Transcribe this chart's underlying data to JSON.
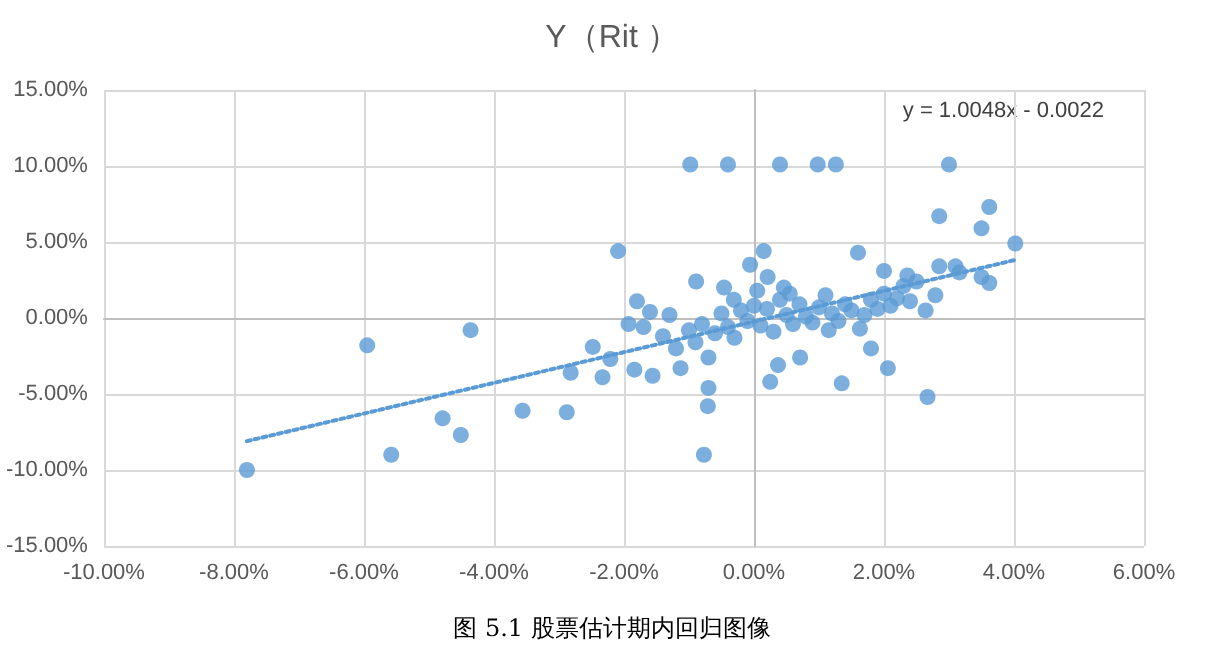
{
  "chart_data": {
    "type": "scatter",
    "title": "Y（Rit ）",
    "annotations": [
      "y = 1.0048x - 0.0022",
      "图 5.1 股票估计期内回归图像"
    ],
    "xlim": [
      -0.1,
      0.06
    ],
    "ylim": [
      -0.15,
      0.15
    ],
    "xticks": [
      {
        "value": -0.1,
        "label": "-10.00%"
      },
      {
        "value": -0.08,
        "label": "-8.00%"
      },
      {
        "value": -0.06,
        "label": "-6.00%"
      },
      {
        "value": -0.04,
        "label": "-4.00%"
      },
      {
        "value": -0.02,
        "label": "-2.00%"
      },
      {
        "value": 0,
        "label": "0.00%"
      },
      {
        "value": 0.02,
        "label": "2.00%"
      },
      {
        "value": 0.04,
        "label": "4.00%"
      },
      {
        "value": 0.06,
        "label": "6.00%"
      }
    ],
    "yticks": [
      {
        "value": -0.15,
        "label": "-15.00%"
      },
      {
        "value": -0.1,
        "label": "-10.00%"
      },
      {
        "value": -0.05,
        "label": "-5.00%"
      },
      {
        "value": 0,
        "label": "0.00%"
      },
      {
        "value": 0.05,
        "label": "5.00%"
      },
      {
        "value": 0.1,
        "label": "10.00%"
      },
      {
        "value": 0.15,
        "label": "15.00%"
      }
    ],
    "grid": true,
    "marker": "circle",
    "series": [
      {
        "color": "#5b9bd5",
        "x": [
          -0.078,
          -0.0558,
          -0.0595,
          -0.0436,
          -0.0479,
          -0.0451,
          -0.0356,
          -0.0288,
          -0.0282,
          -0.0248,
          -0.0233,
          -0.0221,
          -0.0209,
          -0.0193,
          -0.018,
          -0.0184,
          -0.0098,
          -0.004,
          0.004,
          0.0098,
          0.0126,
          0.03,
          0.0285,
          0.0362,
          0.035,
          0.0402,
          0.0015,
          -0.0006,
          0.016,
          0.02,
          0.0236,
          0.0285,
          0.031,
          0.0316,
          0.035,
          0.0362,
          0.0279,
          0.0264,
          0.0267,
          0.0206,
          0.0135,
          0.0071,
          0.0025,
          0.0037,
          -0.0071,
          -0.0077,
          -0.007,
          -0.0089,
          -0.0046,
          -0.0031,
          0.0021,
          0.0046,
          -0.0156,
          -0.0113,
          -0.016,
          0.0163,
          0.018,
          -0.014,
          -0.012,
          -0.01,
          -0.009,
          -0.008,
          -0.006,
          -0.005,
          -0.004,
          -0.003,
          -0.002,
          -0.001,
          0.0,
          0.001,
          0.002,
          0.003,
          0.004,
          0.005,
          0.006,
          0.007,
          0.008,
          0.009,
          0.01,
          0.011,
          0.012,
          0.013,
          0.014,
          0.015,
          0.017,
          0.018,
          0.019,
          0.02,
          0.021,
          0.022,
          0.023,
          0.024,
          0.025,
          -0.017,
          -0.013,
          -0.007,
          0.0005,
          0.0055,
          0.0115
        ],
        "values": [
          -0.1,
          -0.09,
          -0.018,
          -0.008,
          -0.066,
          -0.077,
          -0.061,
          -0.062,
          -0.036,
          -0.019,
          -0.039,
          -0.027,
          0.044,
          -0.004,
          0.011,
          -0.034,
          0.101,
          0.101,
          0.101,
          0.101,
          0.101,
          0.101,
          0.067,
          0.073,
          0.059,
          0.049,
          0.044,
          0.035,
          0.043,
          0.031,
          0.028,
          0.034,
          0.034,
          0.03,
          0.027,
          0.023,
          0.015,
          0.005,
          -0.052,
          -0.033,
          -0.043,
          -0.026,
          -0.042,
          -0.031,
          -0.058,
          -0.09,
          -0.046,
          0.024,
          0.02,
          0.012,
          0.027,
          0.02,
          -0.038,
          -0.033,
          0.004,
          -0.007,
          -0.02,
          -0.012,
          -0.02,
          -0.008,
          -0.016,
          -0.004,
          -0.01,
          0.003,
          -0.006,
          -0.013,
          0.005,
          -0.002,
          0.008,
          -0.005,
          0.006,
          -0.009,
          0.012,
          0.002,
          -0.004,
          0.009,
          0.001,
          -0.003,
          0.007,
          0.015,
          0.003,
          -0.002,
          0.009,
          0.005,
          0.002,
          0.012,
          0.006,
          0.016,
          0.008,
          0.013,
          0.021,
          0.011,
          0.024,
          -0.006,
          0.002,
          -0.026,
          0.018,
          0.016,
          -0.008
        ]
      },
      {
        "type": "line",
        "color": "#5b9bd5",
        "line_style": "dotted",
        "marker": "none",
        "x": [
          -0.078,
          0.04
        ],
        "values": [
          -0.081,
          0.038
        ]
      }
    ]
  }
}
